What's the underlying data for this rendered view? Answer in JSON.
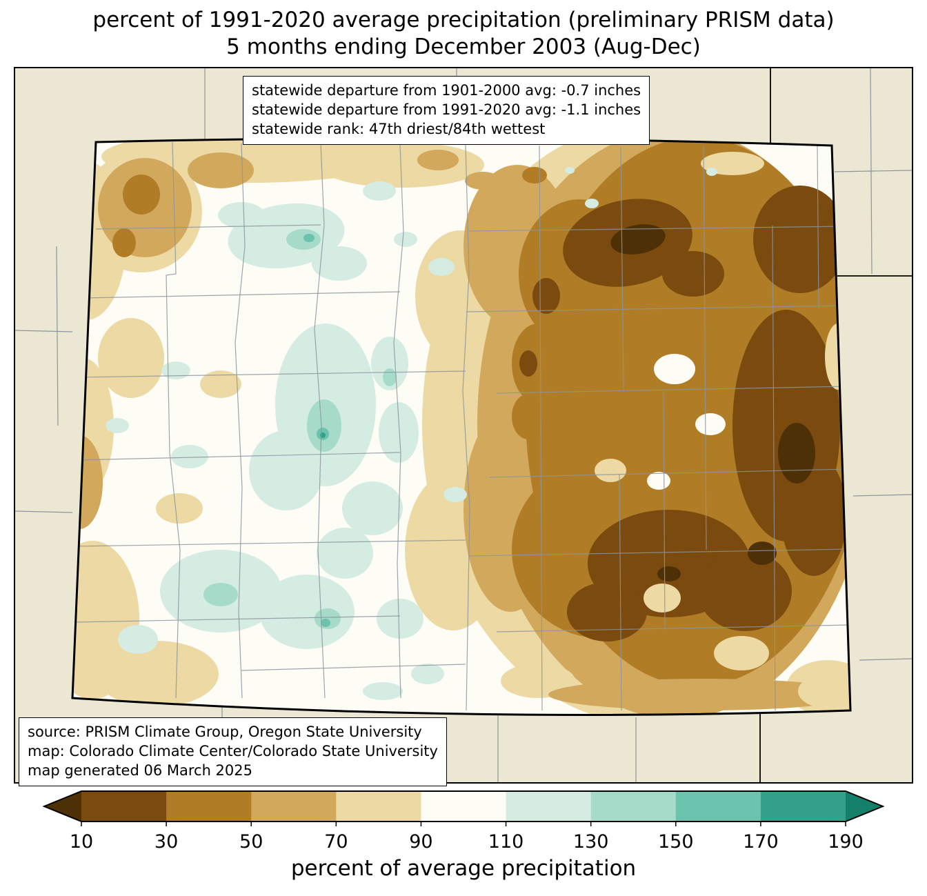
{
  "title": {
    "line1": "percent of 1991-2020 average precipitation (preliminary PRISM data)",
    "line2": "5 months ending December 2003 (Aug-Dec)"
  },
  "stats_box": {
    "line1": "statewide departure from 1901-2000 avg: -0.7 inches",
    "line2": "statewide departure from 1991-2020 avg: -1.1 inches",
    "line3": "statewide rank: 47th driest/84th wettest"
  },
  "source_box": {
    "line1": "source: PRISM Climate Group, Oregon State University",
    "line2": "map: Colorado Climate Center/Colorado State University",
    "line3": "map generated 06 March 2025"
  },
  "colorbar": {
    "label": "percent of average precipitation",
    "ticks": [
      "10",
      "30",
      "50",
      "70",
      "90",
      "110",
      "130",
      "150",
      "170",
      "190"
    ],
    "colors": [
      "#4e3007",
      "#7a4a0e",
      "#b07d26",
      "#d2a95c",
      "#ecd9a4",
      "#fdfdf6",
      "#d5ece3",
      "#a6dbc9",
      "#6cc3ad",
      "#33a18a",
      "#15806a"
    ]
  },
  "map": {
    "outside_color": "#ebe7d2",
    "county_line_color": "#8b959d",
    "state_border_color": "#000000"
  }
}
